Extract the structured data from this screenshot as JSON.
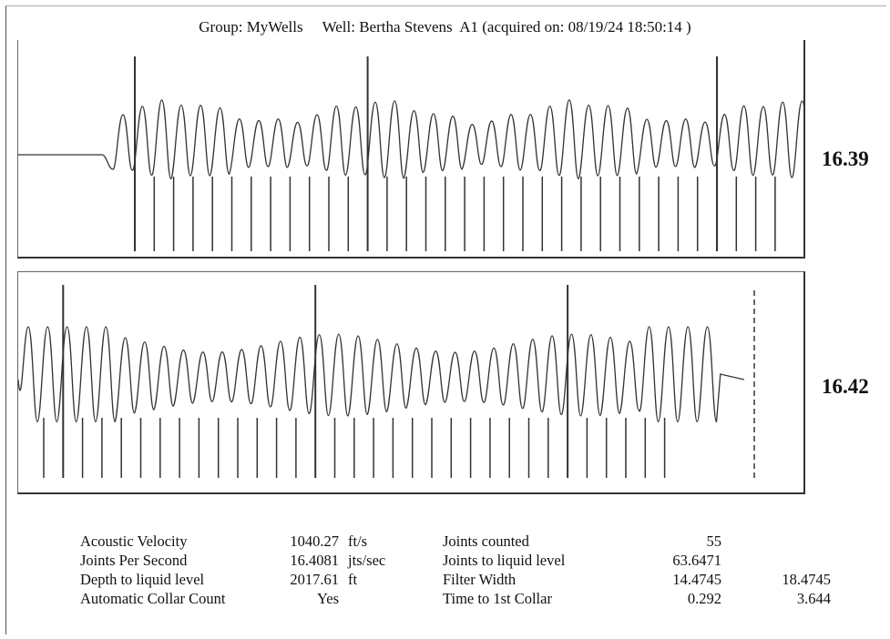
{
  "header": {
    "group_label": "Group: MyWells",
    "well_label": "Well: Bertha Stevens  A1 (acquired on: 08/19/24 18:50:14 )"
  },
  "panels": [
    {
      "value": "16.39"
    },
    {
      "value": "16.42"
    }
  ],
  "info": {
    "left": [
      {
        "label": "Acoustic Velocity",
        "value": "1040.27",
        "unit": "ft/s"
      },
      {
        "label": "Joints Per Second",
        "value": "16.4081",
        "unit": "jts/sec"
      },
      {
        "label": "Depth to liquid level",
        "value": "2017.61",
        "unit": "ft"
      },
      {
        "label": "Automatic Collar Count",
        "value": "Yes",
        "unit": ""
      }
    ],
    "right": [
      {
        "label": "Joints counted",
        "value": "55",
        "value2": ""
      },
      {
        "label": "Joints to liquid level",
        "value": "63.6471",
        "value2": ""
      },
      {
        "label": "Filter Width",
        "value": "14.4745",
        "value2": "18.4745"
      },
      {
        "label": "Time to 1st Collar",
        "value": "0.292",
        "value2": "3.644"
      }
    ]
  },
  "colors": {
    "trace": "#333333",
    "frame": "#333333"
  }
}
